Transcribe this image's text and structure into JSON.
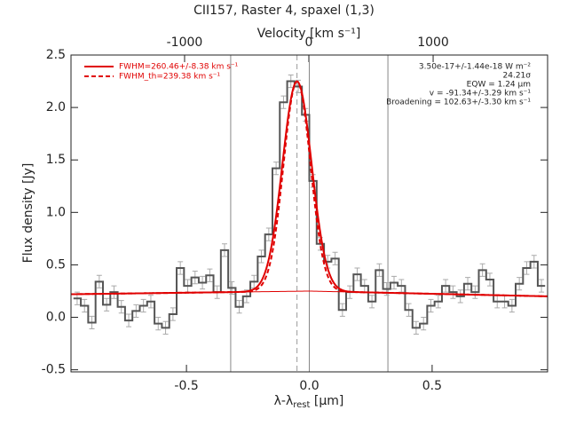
{
  "chart_data": {
    "type": "step",
    "title": "CII157, Raster 4, spaxel (1,3)",
    "top_axis_label": "Velocity [km s⁻¹]",
    "ylabel": "Flux density [Jy]",
    "xlabel": {
      "text": "λ-λ",
      "sub": "rest",
      "unit": " [μm]"
    },
    "xlim": [
      -0.97,
      0.97
    ],
    "ylim": [
      -0.52,
      2.5
    ],
    "xticks": [
      -0.5,
      {
        "value": 0,
        "label": "0.0"
      },
      0.5
    ],
    "yticks": [
      -0.5,
      {
        "value": 0,
        "label": "0.0"
      },
      0.5,
      {
        "value": 1,
        "label": "1.0"
      },
      1.5,
      {
        "value": 2,
        "label": "2.0"
      },
      2.5
    ],
    "x2lim": [
      -1914,
      1921
    ],
    "x2ticks": [
      -1000,
      0,
      1000
    ],
    "x": [
      -0.945,
      -0.915,
      -0.885,
      -0.855,
      -0.825,
      -0.795,
      -0.765,
      -0.735,
      -0.705,
      -0.675,
      -0.645,
      -0.615,
      -0.585,
      -0.555,
      -0.525,
      -0.495,
      -0.465,
      -0.435,
      -0.405,
      -0.375,
      -0.345,
      -0.315,
      -0.285,
      -0.255,
      -0.225,
      -0.195,
      -0.165,
      -0.135,
      -0.105,
      -0.075,
      -0.045,
      -0.015,
      0.015,
      0.045,
      0.075,
      0.105,
      0.135,
      0.165,
      0.195,
      0.225,
      0.255,
      0.285,
      0.315,
      0.345,
      0.375,
      0.405,
      0.435,
      0.465,
      0.495,
      0.525,
      0.555,
      0.585,
      0.615,
      0.645,
      0.675,
      0.705,
      0.735,
      0.765,
      0.795,
      0.825,
      0.855,
      0.885,
      0.915,
      0.945
    ],
    "series": [
      {
        "color": "#555555",
        "error_color": "#aaaaaa",
        "error": 0.06,
        "values": [
          0.18,
          0.11,
          -0.05,
          0.34,
          0.12,
          0.24,
          0.1,
          -0.03,
          0.06,
          0.11,
          0.15,
          -0.06,
          -0.1,
          0.03,
          0.47,
          0.3,
          0.38,
          0.33,
          0.4,
          0.24,
          0.64,
          0.28,
          0.1,
          0.2,
          0.34,
          0.58,
          0.79,
          1.42,
          2.05,
          2.25,
          2.2,
          1.93,
          1.3,
          0.7,
          0.53,
          0.56,
          0.07,
          0.24,
          0.41,
          0.3,
          0.15,
          0.45,
          0.27,
          0.33,
          0.3,
          0.07,
          -0.1,
          -0.06,
          0.11,
          0.15,
          0.3,
          0.24,
          0.2,
          0.32,
          0.24,
          0.45,
          0.36,
          0.15,
          0.15,
          0.11,
          0.32,
          0.47,
          0.53,
          0.3
        ]
      }
    ],
    "continuum": {
      "x": [
        -0.97,
        0,
        0.97
      ],
      "y": [
        0.22,
        0.25,
        0.2
      ],
      "color": "#e00000"
    },
    "fits": [
      {
        "name": "FWHM=260.46+/-8.38 km s⁻¹",
        "color": "#e00000",
        "dashed": false,
        "center": -0.05,
        "amplitude": 2.0,
        "fwhm": 0.14
      },
      {
        "name": "FWHM_th=239.38 km s⁻¹",
        "color": "#e00000",
        "dashed": true,
        "center": -0.05,
        "amplitude": 2.0,
        "fwhm": 0.129
      }
    ],
    "vlines": [
      -0.32,
      0,
      0.32
    ],
    "center_line": -0.05,
    "annotations": [
      "3.50e-17+/-1.44e-18 W m⁻²",
      "24.21σ",
      "EQW = 1.24 μm",
      "v = -91.34+/-3.29 km s⁻¹",
      "Broadening = 102.63+/-3.30 km s⁻¹"
    ]
  }
}
